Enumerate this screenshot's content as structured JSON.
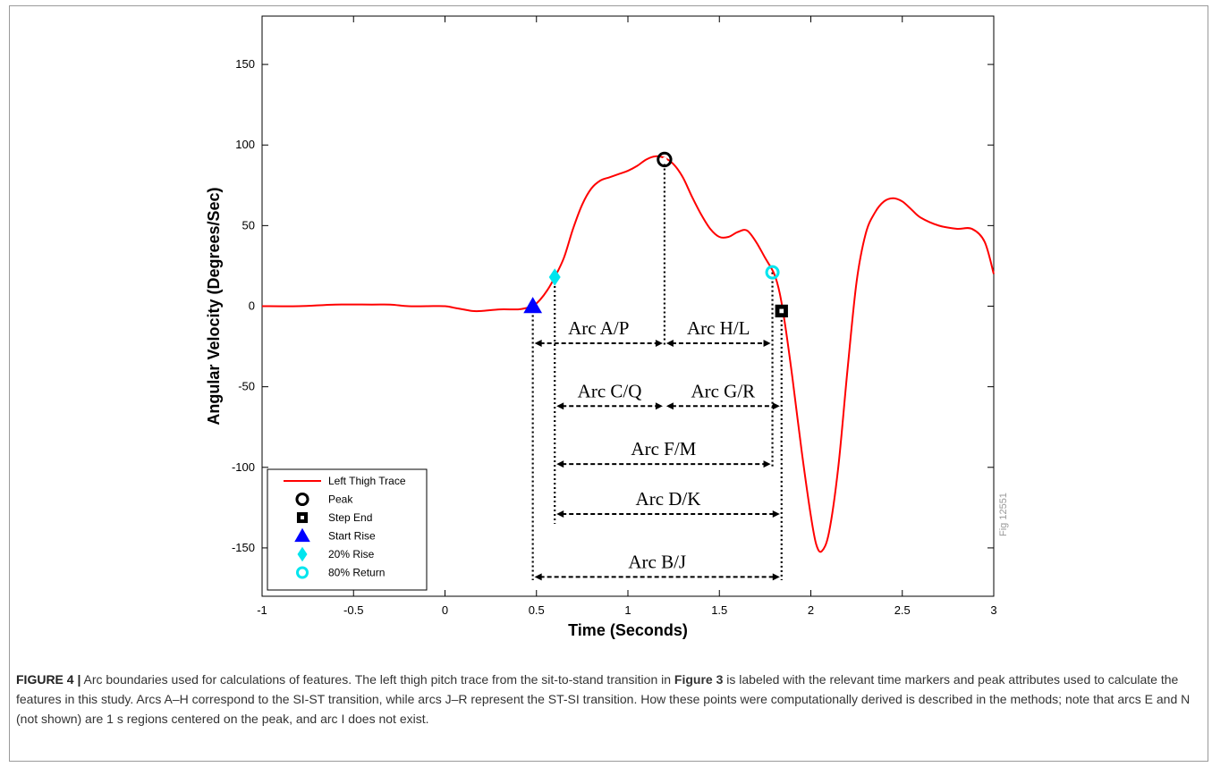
{
  "chart_data": {
    "type": "line",
    "xlabel": "Time (Seconds)",
    "ylabel": "Angular Velocity (Degrees/Sec)",
    "xlim": [
      -1,
      3
    ],
    "ylim": [
      -180,
      180
    ],
    "xticks": [
      -1,
      -0.5,
      0,
      0.5,
      1,
      1.5,
      2,
      2.5,
      3
    ],
    "xtick_labels": [
      "-1",
      "-0.5",
      "0",
      "0.5",
      "1",
      "1.5",
      "2",
      "2.5",
      "3"
    ],
    "yticks": [
      -150,
      -100,
      -50,
      0,
      50,
      100,
      150
    ],
    "ytick_labels": [
      "-150",
      "-100",
      "-50",
      "0",
      "50",
      "100",
      "150"
    ],
    "grid": false,
    "legend_position": "bottom-left",
    "series": [
      {
        "name": "Left Thigh Trace",
        "color": "#ff0000",
        "x": [
          -1.0,
          -0.8,
          -0.6,
          -0.4,
          -0.3,
          -0.2,
          -0.1,
          0.0,
          0.05,
          0.1,
          0.15,
          0.2,
          0.3,
          0.4,
          0.45,
          0.48,
          0.52,
          0.56,
          0.6,
          0.65,
          0.7,
          0.75,
          0.8,
          0.85,
          0.9,
          0.95,
          1.0,
          1.05,
          1.1,
          1.15,
          1.2,
          1.25,
          1.3,
          1.35,
          1.4,
          1.45,
          1.5,
          1.55,
          1.6,
          1.65,
          1.7,
          1.75,
          1.8,
          1.83,
          1.86,
          1.9,
          1.95,
          2.0,
          2.03,
          2.06,
          2.1,
          2.15,
          2.2,
          2.25,
          2.3,
          2.35,
          2.4,
          2.45,
          2.5,
          2.55,
          2.6,
          2.7,
          2.8,
          2.88,
          2.95,
          3.0
        ],
        "y": [
          0,
          0,
          1,
          1,
          1,
          0,
          0,
          0,
          -1,
          -2,
          -3,
          -3,
          -2,
          -2,
          -1,
          0,
          4,
          10,
          18,
          30,
          48,
          63,
          73,
          78,
          80,
          82,
          84,
          87,
          91,
          93,
          92,
          88,
          80,
          68,
          57,
          48,
          43,
          43,
          46,
          47,
          40,
          30,
          20,
          8,
          -12,
          -45,
          -90,
          -130,
          -148,
          -152,
          -140,
          -100,
          -40,
          15,
          45,
          58,
          65,
          67,
          65,
          60,
          55,
          50,
          48,
          48,
          40,
          20
        ]
      }
    ],
    "markers": [
      {
        "name": "Peak",
        "x": 1.2,
        "y": 91,
        "shape": "circle",
        "color": "#000000"
      },
      {
        "name": "Step End",
        "x": 1.84,
        "y": -3,
        "shape": "square",
        "color": "#000000"
      },
      {
        "name": "Start Rise",
        "x": 0.48,
        "y": 0,
        "shape": "triangle",
        "color": "#0000ff"
      },
      {
        "name": "20% Rise",
        "x": 0.6,
        "y": 18,
        "shape": "diamond",
        "color": "#00e5ee"
      },
      {
        "name": "80% Return",
        "x": 1.79,
        "y": 21,
        "shape": "circle-ring",
        "color": "#00e5ee"
      }
    ],
    "legend": [
      "Left Thigh Trace",
      "Peak",
      "Step End",
      "Start Rise",
      "20% Rise",
      "80% Return"
    ],
    "vlines": [
      {
        "x": 0.48,
        "y_from": 0,
        "y_to": -170
      },
      {
        "x": 0.6,
        "y_from": 18,
        "y_to": -135
      },
      {
        "x": 1.2,
        "y_from": 91,
        "y_to": -25
      },
      {
        "x": 1.79,
        "y_from": 21,
        "y_to": -100
      },
      {
        "x": 1.84,
        "y_from": -3,
        "y_to": -170
      }
    ],
    "arcs": [
      {
        "label": "Arc A/P",
        "x1": 0.48,
        "x2": 1.2,
        "y": -23
      },
      {
        "label": "Arc H/L",
        "x1": 1.2,
        "x2": 1.79,
        "y": -23
      },
      {
        "label": "Arc C/Q",
        "x1": 0.6,
        "x2": 1.2,
        "y": -62
      },
      {
        "label": "Arc G/R",
        "x1": 1.2,
        "x2": 1.84,
        "y": -62
      },
      {
        "label": "Arc F/M",
        "x1": 0.6,
        "x2": 1.79,
        "y": -98
      },
      {
        "label": "Arc D/K",
        "x1": 0.6,
        "x2": 1.84,
        "y": -129
      },
      {
        "label": "Arc B/J",
        "x1": 0.48,
        "x2": 1.84,
        "y": -168
      }
    ]
  },
  "fig_id": "Fig 12551",
  "caption": {
    "label": "FIGURE 4 |",
    "text_1": " Arc boundaries used for calculations of features. The left thigh pitch trace from the sit-to-stand transition in ",
    "ref": "Figure 3",
    "text_2": " is labeled with the relevant time markers and peak attributes used to calculate the features in this study. Arcs A–H correspond to the SI-ST transition, while arcs J–R represent the ST-SI transition. How these points were computationally derived is described in the methods; note that arcs E and N (not shown) are 1 s regions centered on the peak, and arc I does not exist."
  }
}
